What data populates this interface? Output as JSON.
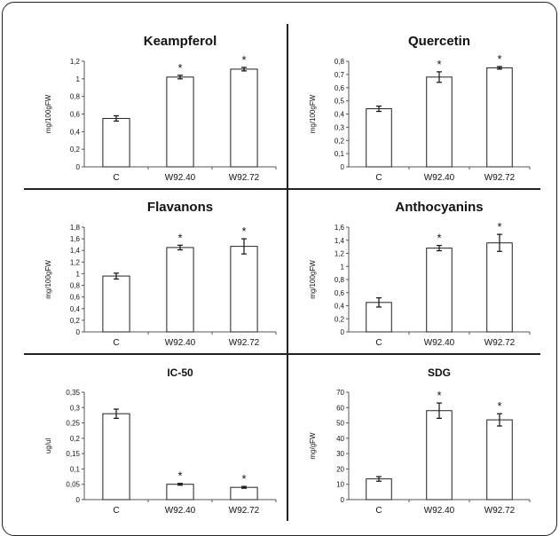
{
  "chart_data": [
    {
      "type": "bar",
      "title": "Keampferol",
      "ylabel": "mg/100gFW",
      "categories": [
        "C",
        "W92.40",
        "W92.72"
      ],
      "values": [
        0.55,
        1.02,
        1.11
      ],
      "errors": [
        0.03,
        0.02,
        0.02
      ],
      "significance": [
        "",
        "*",
        "*"
      ],
      "ylim": [
        0,
        1.2
      ],
      "yticks": [
        "0",
        "0,2",
        "0,4",
        "0,6",
        "0,8",
        "1",
        "1,2"
      ]
    },
    {
      "type": "bar",
      "title": "Quercetin",
      "ylabel": "mg/100gFW",
      "categories": [
        "C",
        "W92.40",
        "W92.72"
      ],
      "values": [
        0.44,
        0.68,
        0.75
      ],
      "errors": [
        0.02,
        0.04,
        0.01
      ],
      "significance": [
        "",
        "*",
        "*"
      ],
      "ylim": [
        0,
        0.8
      ],
      "yticks": [
        "0",
        "0,1",
        "0,2",
        "0,3",
        "0,4",
        "0,5",
        "0,6",
        "0,7",
        "0,8"
      ]
    },
    {
      "type": "bar",
      "title": "Flavanons",
      "ylabel": "mg/100gFW",
      "categories": [
        "C",
        "W92.40",
        "W92.72"
      ],
      "values": [
        0.96,
        1.45,
        1.47
      ],
      "errors": [
        0.05,
        0.04,
        0.13
      ],
      "significance": [
        "",
        "*",
        "*"
      ],
      "ylim": [
        0,
        1.8
      ],
      "yticks": [
        "0",
        "0,2",
        "0,4",
        "0,6",
        "0,8",
        "1",
        "1,2",
        "1,4",
        "1,6",
        "1,8"
      ]
    },
    {
      "type": "bar",
      "title": "Anthocyanins",
      "ylabel": "mg/100gFW",
      "categories": [
        "C",
        "W92.40",
        "W92.72"
      ],
      "values": [
        0.45,
        1.28,
        1.36
      ],
      "errors": [
        0.07,
        0.04,
        0.13
      ],
      "significance": [
        "",
        "*",
        "*"
      ],
      "ylim": [
        0,
        1.6
      ],
      "yticks": [
        "0",
        "0,2",
        "0,4",
        "0,6",
        "0,8",
        "1",
        "1,2",
        "1,4",
        "1,6"
      ]
    },
    {
      "type": "bar",
      "title": "IC-50",
      "ylabel": "ug/ul",
      "categories": [
        "C",
        "W92.40",
        "W92.72"
      ],
      "values": [
        0.28,
        0.05,
        0.04
      ],
      "errors": [
        0.015,
        0.003,
        0.003
      ],
      "significance": [
        "",
        "*",
        "*"
      ],
      "ylim": [
        0,
        0.35
      ],
      "yticks": [
        "0",
        "0,05",
        "0,1",
        "0,15",
        "0,2",
        "0,25",
        "0,3",
        "0,35"
      ]
    },
    {
      "type": "bar",
      "title": "SDG",
      "ylabel": "mg/gFW",
      "categories": [
        "C",
        "W92.40",
        "W92.72"
      ],
      "values": [
        13.5,
        58,
        52
      ],
      "errors": [
        1.5,
        5,
        4
      ],
      "significance": [
        "",
        "*",
        "*"
      ],
      "ylim": [
        0,
        70
      ],
      "yticks": [
        "0",
        "10",
        "20",
        "30",
        "40",
        "50",
        "60",
        "70"
      ]
    }
  ]
}
